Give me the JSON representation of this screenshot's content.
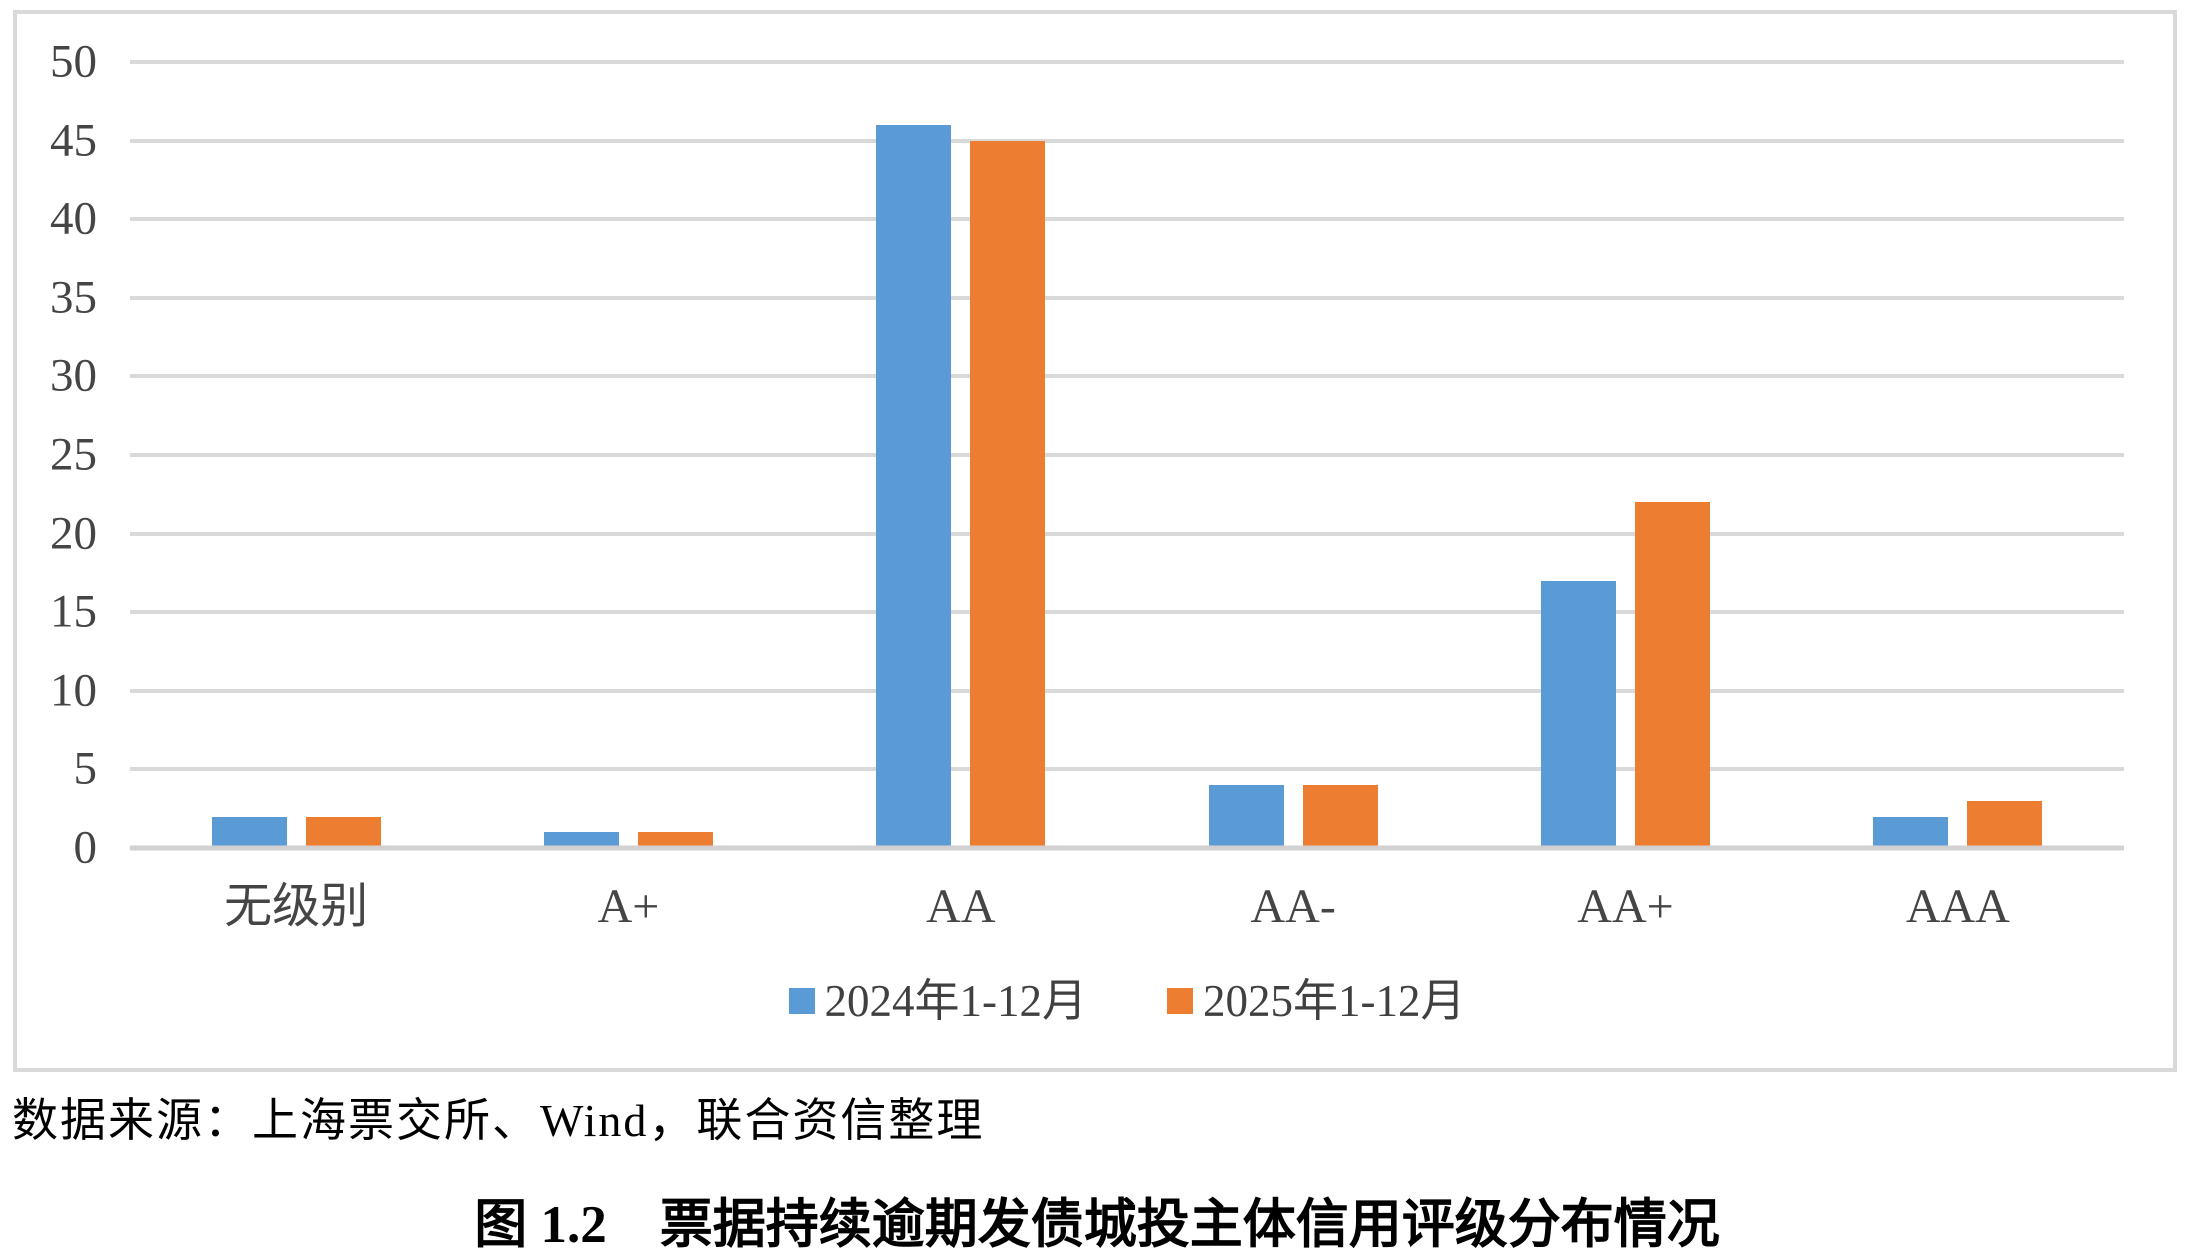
{
  "chart_data": {
    "type": "bar",
    "categories": [
      "无级别",
      "A+",
      "AA",
      "AA-",
      "AA+",
      "AAA"
    ],
    "series": [
      {
        "name": "2024年1-12月",
        "color": "#5B9BD5",
        "values": [
          2,
          1,
          46,
          4,
          17,
          2
        ]
      },
      {
        "name": "2025年1-12月",
        "color": "#ED7D31",
        "values": [
          2,
          1,
          45,
          4,
          22,
          3
        ]
      }
    ],
    "title": "",
    "xlabel": "",
    "ylabel": "",
    "ylim": [
      0,
      50
    ],
    "y_ticks": [
      0,
      5,
      10,
      15,
      20,
      25,
      30,
      35,
      40,
      45,
      50
    ],
    "grid": true,
    "legend_position": "bottom-center",
    "colors": {
      "gridline": "#D9D9D9",
      "baseline": "#D2D0D0",
      "axis_text": "#454545",
      "chart_border": "#D9D9D9"
    }
  },
  "source_note": "数据来源：上海票交所、Wind，联合资信整理",
  "caption": "图 1.2　票据持续逾期发债城投主体信用评级分布情况"
}
